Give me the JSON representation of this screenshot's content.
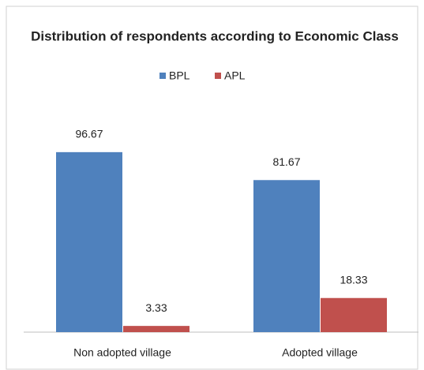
{
  "chart_data": {
    "type": "bar",
    "title": "Distribution of respondents according to Economic Class",
    "categories": [
      "Non adopted village",
      "Adopted village"
    ],
    "series": [
      {
        "name": "BPL",
        "color": "#4f81bd",
        "values": [
          96.67,
          81.67
        ]
      },
      {
        "name": "APL",
        "color": "#c0504d",
        "values": [
          3.33,
          18.33
        ]
      }
    ],
    "ylim": [
      0,
      100
    ],
    "legend": "top"
  }
}
